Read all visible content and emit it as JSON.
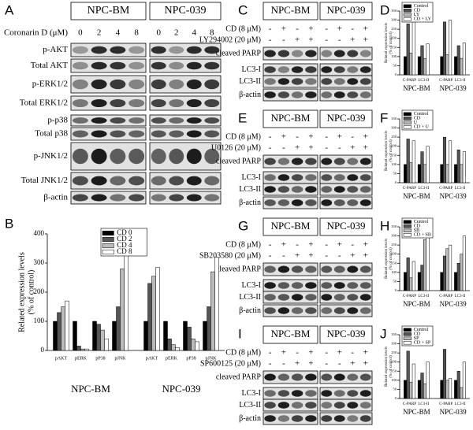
{
  "blots": [
    {
      "label": "A",
      "groups": [
        "NPC-BM",
        "NPC-039"
      ],
      "treatment": "Coronarin D (μM)",
      "lanes": [
        "0",
        "2",
        "4",
        "8"
      ],
      "rows": [
        "p-AKT",
        "Total AKT",
        "p-ERK1/2",
        "Total ERK1/2",
        "p-p38",
        "Total p38",
        "p-JNK1/2",
        "Total JNK1/2",
        "β-actin"
      ]
    },
    {
      "label": "C",
      "groups": [
        "NPC-BM",
        "NPC-039"
      ],
      "treatments": [
        {
          "name": "CD (8 μM)",
          "signs": [
            "-",
            "+",
            "-",
            "+"
          ]
        },
        {
          "name": "LY294002 (20 μM)",
          "signs": [
            "-",
            "-",
            "+",
            "+"
          ]
        }
      ],
      "rows": [
        "cleaved PARP",
        "LC3-I",
        "LC3-II",
        "β-actin"
      ]
    },
    {
      "label": "E",
      "groups": [
        "NPC-BM",
        "NPC-039"
      ],
      "treatments": [
        {
          "name": "CD (8 μM)",
          "signs": [
            "-",
            "+",
            "-",
            "+"
          ]
        },
        {
          "name": "U0126 (20 μM)",
          "signs": [
            "-",
            "-",
            "+",
            "+"
          ]
        }
      ],
      "rows": [
        "cleaved PARP",
        "LC3-I",
        "LC3-II",
        "β-actin"
      ]
    },
    {
      "label": "G",
      "groups": [
        "NPC-BM",
        "NPC-039"
      ],
      "treatments": [
        {
          "name": "CD (8 μM)",
          "signs": [
            "-",
            "+",
            "-",
            "+"
          ]
        },
        {
          "name": "SB203580 (20 μM)",
          "signs": [
            "-",
            "-",
            "+",
            "+"
          ]
        }
      ],
      "rows": [
        "cleaved PARP",
        "LC3-I",
        "LC3-II",
        "β-actin"
      ]
    },
    {
      "label": "I",
      "groups": [
        "NPC-BM",
        "NPC-039"
      ],
      "treatments": [
        {
          "name": "CD (8 μM)",
          "signs": [
            "-",
            "+",
            "-",
            "+"
          ]
        },
        {
          "name": "SP600125 (20 μM)",
          "signs": [
            "-",
            "-",
            "+",
            "+"
          ]
        }
      ],
      "rows": [
        "cleaved PARP",
        "LC3-I",
        "LC3-II",
        "β-actin"
      ]
    }
  ],
  "chart_data": [
    {
      "type": "bar",
      "label": "B",
      "ylabel": [
        "Related expression levels",
        "(% of control)"
      ],
      "groups": [
        "NPC-BM",
        "NPC-039"
      ],
      "categories": [
        "pAKT",
        "pERK",
        "pP38",
        "pJNK",
        "pAKT",
        "pERK",
        "pP38",
        "pJNK"
      ],
      "series": [
        {
          "name": "CD 0",
          "color": "#000000",
          "values": [
            100,
            100,
            100,
            100,
            100,
            100,
            100,
            100
          ]
        },
        {
          "name": "CD 2",
          "color": "#555555",
          "values": [
            130,
            15,
            90,
            150,
            230,
            40,
            80,
            150
          ]
        },
        {
          "name": "CD 4",
          "color": "#bbbbbb",
          "values": [
            150,
            5,
            70,
            280,
            255,
            20,
            40,
            270
          ]
        },
        {
          "name": "CD 8",
          "color": "#ffffff",
          "values": [
            170,
            5,
            40,
            360,
            285,
            10,
            30,
            320
          ]
        }
      ],
      "ylim": [
        0,
        400
      ],
      "yticks": [
        0,
        100,
        200,
        300,
        400
      ]
    },
    {
      "type": "bar",
      "label": "D",
      "ylabel": [
        "Related expression levels",
        "(% of control)"
      ],
      "groups": [
        "NPC-BM",
        "NPC-039"
      ],
      "categories": [
        "C-PARP",
        "LC3-II",
        "C-PARP",
        "LC3-II"
      ],
      "series": [
        {
          "name": "Control",
          "color": "#000000",
          "values": [
            100,
            100,
            100,
            100
          ]
        },
        {
          "name": "CD",
          "color": "#555555",
          "values": [
            280,
            160,
            290,
            160
          ]
        },
        {
          "name": "LY",
          "color": "#bbbbbb",
          "values": [
            120,
            90,
            110,
            90
          ]
        },
        {
          "name": "CD + LY",
          "color": "#ffffff",
          "values": [
            290,
            170,
            300,
            175
          ]
        }
      ],
      "ylim": [
        0,
        350
      ],
      "yticks": [
        0,
        50,
        100,
        150,
        200,
        250,
        300,
        350
      ]
    },
    {
      "type": "bar",
      "label": "F",
      "ylabel": [
        "Related expression levels",
        "(% of control)"
      ],
      "groups": [
        "NPC-BM",
        "NPC-039"
      ],
      "categories": [
        "C-PARP",
        "LC3-II",
        "C-PARP",
        "LC3-II"
      ],
      "series": [
        {
          "name": "Control",
          "color": "#000000",
          "values": [
            100,
            100,
            100,
            100
          ]
        },
        {
          "name": "CD",
          "color": "#555555",
          "values": [
            240,
            170,
            250,
            180
          ]
        },
        {
          "name": "U",
          "color": "#bbbbbb",
          "values": [
            110,
            100,
            100,
            100
          ]
        },
        {
          "name": "CD + U",
          "color": "#ffffff",
          "values": [
            230,
            200,
            230,
            170
          ]
        }
      ],
      "ylim": [
        0,
        350
      ],
      "yticks": [
        0,
        50,
        100,
        150,
        200,
        250,
        300,
        350
      ]
    },
    {
      "type": "bar",
      "label": "H",
      "ylabel": [
        "Related expression levels",
        "(% of control)"
      ],
      "groups": [
        "NPC-BM",
        "NPC-039"
      ],
      "categories": [
        "C-PARP",
        "LC3-II",
        "C-PARP",
        "LC3-II"
      ],
      "series": [
        {
          "name": "Control",
          "color": "#000000",
          "values": [
            100,
            100,
            100,
            100
          ]
        },
        {
          "name": "CD",
          "color": "#555555",
          "values": [
            180,
            140,
            190,
            150
          ]
        },
        {
          "name": "SB",
          "color": "#bbbbbb",
          "values": [
            70,
            280,
            230,
            200
          ]
        },
        {
          "name": "CD + SB",
          "color": "#ffffff",
          "values": [
            160,
            300,
            250,
            300
          ]
        }
      ],
      "ylim": [
        0,
        350
      ],
      "yticks": [
        0,
        50,
        100,
        150,
        200,
        250,
        300,
        350
      ]
    },
    {
      "type": "bar",
      "label": "J",
      "ylabel": [
        "Related expression levels",
        "(% of control)"
      ],
      "groups": [
        "NPC-BM",
        "NPC-039"
      ],
      "categories": [
        "C-PARP",
        "LC3-II",
        "C-PARP",
        "LC3-II"
      ],
      "series": [
        {
          "name": "Control",
          "color": "#000000",
          "values": [
            100,
            100,
            100,
            100
          ]
        },
        {
          "name": "CD",
          "color": "#555555",
          "values": [
            260,
            140,
            270,
            150
          ]
        },
        {
          "name": "SP",
          "color": "#bbbbbb",
          "values": [
            90,
            80,
            100,
            60
          ]
        },
        {
          "name": "CD + SP",
          "color": "#ffffff",
          "values": [
            190,
            200,
            110,
            200
          ]
        }
      ],
      "ylim": [
        0,
        350
      ],
      "yticks": [
        0,
        50,
        100,
        150,
        200,
        250,
        300,
        350
      ]
    }
  ]
}
